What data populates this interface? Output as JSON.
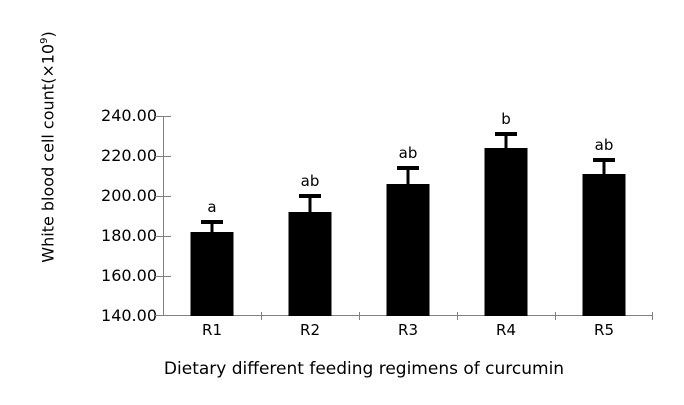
{
  "figure": {
    "background_color": "#ffffff",
    "y_axis_title_main": "White blood cell count(×10",
    "y_axis_title_sup": "9",
    "y_axis_title_end": ")",
    "x_axis_title": "Dietary different feeding regimens of curcumin"
  },
  "chart_data": {
    "type": "bar",
    "title": "",
    "xlabel": "Dietary different feeding regimens of curcumin",
    "ylabel": "White blood cell count (×10⁹)",
    "categories": [
      "R1",
      "R2",
      "R3",
      "R4",
      "R5"
    ],
    "values": [
      182,
      192,
      206,
      224,
      211
    ],
    "errors_upper": [
      6,
      9,
      9,
      8,
      8
    ],
    "significance_letters": [
      "a",
      "ab",
      "ab",
      "b",
      "ab"
    ],
    "ylim": [
      140,
      240
    ],
    "ytick_interval": 20,
    "ytick_labels_top_to_bottom": [
      "240.00",
      "220.00",
      "200.00",
      "180.00",
      "160.00",
      "140.00"
    ],
    "grid": false,
    "legend": false,
    "bar_color": "#000000",
    "axis_color": "#808080",
    "text_color": "#000000"
  }
}
